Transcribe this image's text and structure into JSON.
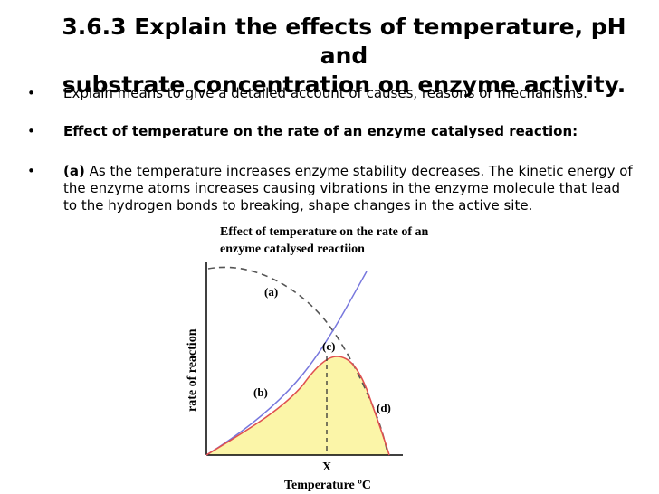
{
  "title_line1": "3.6.3 Explain the effects of temperature, pH and",
  "title_line2": "substrate concentration on enzyme activity.",
  "bullets": [
    {
      "marker": "•",
      "text": "Explain means to give a detailed account of causes, reasons or mechanisms."
    },
    {
      "marker": "•",
      "text": "Effect of temperature on the rate of an enzyme catalysed reaction:"
    },
    {
      "marker": "•",
      "prefix": "(a)",
      "lines": [
        "As the temperature increases enzyme stability decreases. The kinetic energy of",
        "the enzyme atoms increases causing vibrations in the enzyme molecule that lead",
        "to the hydrogen bonds to breaking, shape changes in the active site."
      ]
    }
  ],
  "chart_data": {
    "type": "line",
    "title_line1": "Effect of temperature on the rate of an",
    "title_line2": "enzyme catalysed  reactiion",
    "xlabel": "Temperature ºC",
    "ylabel": "rate of reaction",
    "x_marker": "X",
    "labels": [
      "(a)",
      "(b)",
      "(c)",
      "(d)"
    ],
    "colors": {
      "activity": "#7777dd",
      "observed": "#e05050",
      "fill": "#fbf5a8",
      "stability": "#555555"
    }
  }
}
